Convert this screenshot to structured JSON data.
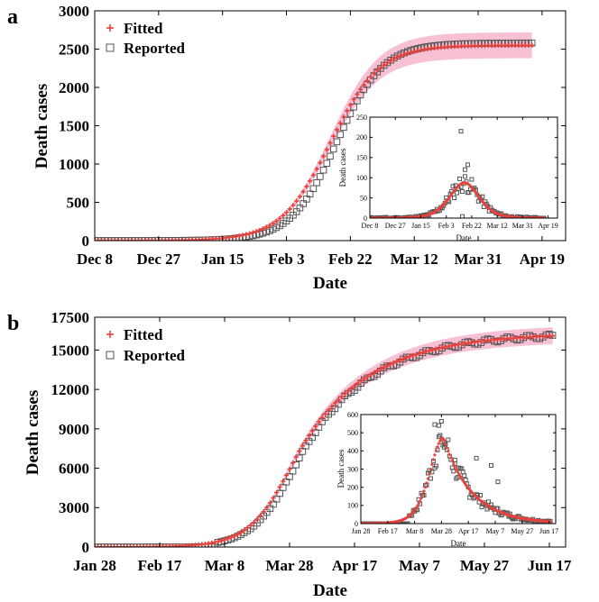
{
  "chart_data": [
    {
      "panel_label": "a",
      "type": "scatter",
      "xlabel": "Date",
      "ylabel": "Death cases",
      "xlim": [
        0,
        140
      ],
      "ylim": [
        0,
        3000
      ],
      "xticks": [
        {
          "value": 0,
          "label": "Dec 8"
        },
        {
          "value": 19,
          "label": "Dec 27"
        },
        {
          "value": 38,
          "label": "Jan 15"
        },
        {
          "value": 57,
          "label": "Feb 3"
        },
        {
          "value": 76,
          "label": "Feb 22"
        },
        {
          "value": 95,
          "label": "Mar 12"
        },
        {
          "value": 114,
          "label": "Mar 31"
        },
        {
          "value": 133,
          "label": "Apr 19"
        }
      ],
      "yticks": [
        0,
        500,
        1000,
        1500,
        2000,
        2500,
        3000
      ],
      "legend": [
        {
          "name": "Fitted",
          "color": "#e8413c",
          "marker": "plus"
        },
        {
          "name": "Reported",
          "color": "#555555",
          "marker": "square"
        }
      ],
      "fitted_final": 2550,
      "fitted_midpoint_day": 70,
      "fitted_width": 7.3,
      "reported_final": 2580,
      "reported_midpoint_day": 72,
      "reported_width": 6.8,
      "band_halfwidth_fraction": 0.066,
      "last_day": 130,
      "band_color": "#f7b5cc",
      "inset": {
        "xlabel": "Date",
        "ylabel": "Death cases",
        "xlim": [
          0,
          140
        ],
        "ylim": [
          0,
          250
        ],
        "xticks": [
          {
            "value": 0,
            "label": "Dec 8"
          },
          {
            "value": 19,
            "label": "Dec 27"
          },
          {
            "value": 38,
            "label": "Jan 15"
          },
          {
            "value": 57,
            "label": "Feb 3"
          },
          {
            "value": 76,
            "label": "Feb 22"
          },
          {
            "value": 95,
            "label": "Mar 12"
          },
          {
            "value": 114,
            "label": "Mar 31"
          },
          {
            "value": 133,
            "label": "Apr 19"
          }
        ],
        "yticks": [
          0,
          50,
          100,
          150,
          200,
          250
        ],
        "outliers": [
          {
            "x": 68,
            "y": 215
          },
          {
            "x": 73,
            "y": 132
          },
          {
            "x": 71,
            "y": 120
          },
          {
            "x": 69,
            "y": 4
          }
        ]
      }
    },
    {
      "panel_label": "b",
      "type": "scatter",
      "xlabel": "Date",
      "ylabel": "Death cases",
      "xlim": [
        0,
        145
      ],
      "ylim": [
        0,
        17500
      ],
      "xticks": [
        {
          "value": 0,
          "label": "Jan 28"
        },
        {
          "value": 20,
          "label": "Feb 17"
        },
        {
          "value": 40,
          "label": "Mar 8"
        },
        {
          "value": 60,
          "label": "Mar 28"
        },
        {
          "value": 80,
          "label": "Apr 17"
        },
        {
          "value": 100,
          "label": "May 7"
        },
        {
          "value": 120,
          "label": "May 27"
        },
        {
          "value": 140,
          "label": "Jun 17"
        }
      ],
      "yticks": [
        0,
        3000,
        6000,
        9000,
        12000,
        15000,
        17500
      ],
      "legend": [
        {
          "name": "Fitted",
          "color": "#e8413c",
          "marker": "plus"
        },
        {
          "name": "Reported",
          "color": "#555555",
          "marker": "square"
        }
      ],
      "peak_day": 61,
      "value_at_peak": 6400,
      "rise_width": 6.8,
      "final_value": 16300,
      "decay_time": 23,
      "last_day": 141,
      "band_halfwidth_fraction": 0.04,
      "band_color": "#f7b5cc",
      "inset": {
        "xlabel": "Date",
        "ylabel": "Death cases",
        "xlim": [
          0,
          145
        ],
        "ylim": [
          0,
          600
        ],
        "xticks": [
          {
            "value": 0,
            "label": "Jan 28"
          },
          {
            "value": 20,
            "label": "Feb 17"
          },
          {
            "value": 40,
            "label": "Mar 8"
          },
          {
            "value": 60,
            "label": "Mar 28"
          },
          {
            "value": 80,
            "label": "Apr 17"
          },
          {
            "value": 100,
            "label": "May 7"
          },
          {
            "value": 120,
            "label": "May 27"
          },
          {
            "value": 140,
            "label": "Jun 17"
          }
        ],
        "yticks": [
          0,
          100,
          200,
          300,
          400,
          500,
          600
        ],
        "outliers": [
          {
            "x": 55,
            "y": 545
          },
          {
            "x": 58,
            "y": 540
          },
          {
            "x": 62,
            "y": 420
          },
          {
            "x": 70,
            "y": 330
          },
          {
            "x": 97,
            "y": 320
          },
          {
            "x": 86,
            "y": 360
          },
          {
            "x": 102,
            "y": 230
          },
          {
            "x": 110,
            "y": 45
          },
          {
            "x": 113,
            "y": 25
          }
        ]
      }
    }
  ]
}
